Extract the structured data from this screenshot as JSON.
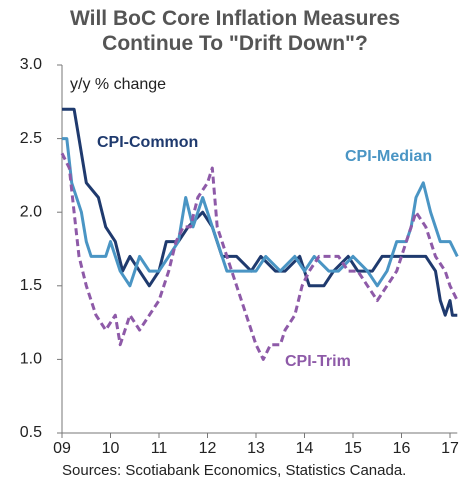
{
  "chart_data": {
    "type": "line",
    "title": "Will BoC Core Inflation Measures Continue To \"Drift Down\"?",
    "ylabel": "y/y % change",
    "source": "Sources: Scotiabank Economics, Statistics Canada.",
    "xlim": [
      2009,
      2017.15
    ],
    "xticks": [
      {
        "value": 2009,
        "label": "09"
      },
      {
        "value": 2010,
        "label": "10"
      },
      {
        "value": 2011,
        "label": "11"
      },
      {
        "value": 2012,
        "label": "12"
      },
      {
        "value": 2013,
        "label": "13"
      },
      {
        "value": 2014,
        "label": "14"
      },
      {
        "value": 2015,
        "label": "15"
      },
      {
        "value": 2016,
        "label": "16"
      },
      {
        "value": 2017,
        "label": "17"
      }
    ],
    "ylim": [
      0.5,
      3.0
    ],
    "yticks": [
      {
        "value": 0.5,
        "label": "0.5"
      },
      {
        "value": 1,
        "label": "1.0"
      },
      {
        "value": 1.5,
        "label": "1.5"
      },
      {
        "value": 2,
        "label": "2.0"
      },
      {
        "value": 2.5,
        "label": "2.5"
      },
      {
        "value": 3,
        "label": "3.0"
      }
    ],
    "series": [
      {
        "name": "CPI-Common",
        "color": "#1f3a6e",
        "dash": false,
        "x": [
          2009.0,
          2009.25,
          2009.35,
          2009.5,
          2009.75,
          2009.9,
          2010.1,
          2010.25,
          2010.4,
          2010.6,
          2010.8,
          2011.0,
          2011.15,
          2011.4,
          2011.6,
          2011.9,
          2012.1,
          2012.3,
          2012.6,
          2012.9,
          2013.1,
          2013.4,
          2013.6,
          2013.9,
          2014.1,
          2014.4,
          2014.6,
          2014.9,
          2015.1,
          2015.4,
          2015.6,
          2016.0,
          2016.5,
          2016.7,
          2016.8,
          2016.9,
          2017.0,
          2017.05,
          2017.15
        ],
        "values": [
          2.7,
          2.7,
          2.5,
          2.2,
          2.1,
          1.9,
          1.8,
          1.6,
          1.7,
          1.6,
          1.5,
          1.6,
          1.8,
          1.8,
          1.9,
          2.0,
          1.9,
          1.7,
          1.7,
          1.6,
          1.7,
          1.6,
          1.6,
          1.7,
          1.5,
          1.5,
          1.6,
          1.7,
          1.6,
          1.6,
          1.7,
          1.7,
          1.7,
          1.6,
          1.4,
          1.3,
          1.4,
          1.3,
          1.3
        ]
      },
      {
        "name": "CPI-Median",
        "color": "#4a95c4",
        "dash": false,
        "x": [
          2009.0,
          2009.1,
          2009.2,
          2009.4,
          2009.5,
          2009.6,
          2009.9,
          2010.0,
          2010.2,
          2010.4,
          2010.6,
          2010.8,
          2011.0,
          2011.2,
          2011.4,
          2011.55,
          2011.7,
          2011.9,
          2012.0,
          2012.2,
          2012.4,
          2012.8,
          2013.0,
          2013.2,
          2013.5,
          2013.8,
          2014.0,
          2014.2,
          2014.5,
          2014.7,
          2015.0,
          2015.3,
          2015.5,
          2015.7,
          2015.9,
          2016.1,
          2016.2,
          2016.3,
          2016.45,
          2016.6,
          2016.8,
          2017.0,
          2017.15
        ],
        "values": [
          2.5,
          2.5,
          2.2,
          2.0,
          1.8,
          1.7,
          1.7,
          1.8,
          1.6,
          1.5,
          1.7,
          1.6,
          1.6,
          1.7,
          1.8,
          2.1,
          1.9,
          2.1,
          2.0,
          1.8,
          1.6,
          1.6,
          1.6,
          1.7,
          1.6,
          1.7,
          1.6,
          1.7,
          1.6,
          1.6,
          1.7,
          1.6,
          1.5,
          1.6,
          1.8,
          1.8,
          1.9,
          2.1,
          2.2,
          2.0,
          1.8,
          1.8,
          1.7
        ]
      },
      {
        "name": "CPI-Trim",
        "color": "#8e5aa8",
        "dash": true,
        "x": [
          2009.0,
          2009.15,
          2009.25,
          2009.35,
          2009.5,
          2009.7,
          2009.9,
          2010.1,
          2010.2,
          2010.4,
          2010.6,
          2010.8,
          2011.0,
          2011.2,
          2011.35,
          2011.5,
          2011.65,
          2011.8,
          2012.0,
          2012.1,
          2012.2,
          2012.4,
          2012.6,
          2012.8,
          2013.0,
          2013.15,
          2013.3,
          2013.5,
          2013.6,
          2013.8,
          2013.95,
          2014.1,
          2014.3,
          2014.5,
          2014.7,
          2014.9,
          2015.1,
          2015.3,
          2015.5,
          2015.7,
          2015.9,
          2016.1,
          2016.3,
          2016.5,
          2016.7,
          2016.9,
          2017.0,
          2017.15
        ],
        "values": [
          2.4,
          2.3,
          2.0,
          1.7,
          1.5,
          1.3,
          1.2,
          1.3,
          1.1,
          1.3,
          1.2,
          1.3,
          1.4,
          1.6,
          1.8,
          1.9,
          1.9,
          2.1,
          2.2,
          2.3,
          1.9,
          1.7,
          1.5,
          1.3,
          1.1,
          1.0,
          1.1,
          1.1,
          1.2,
          1.3,
          1.5,
          1.6,
          1.7,
          1.7,
          1.7,
          1.6,
          1.6,
          1.5,
          1.4,
          1.5,
          1.6,
          1.8,
          2.0,
          1.9,
          1.7,
          1.6,
          1.5,
          1.4
        ]
      }
    ]
  }
}
